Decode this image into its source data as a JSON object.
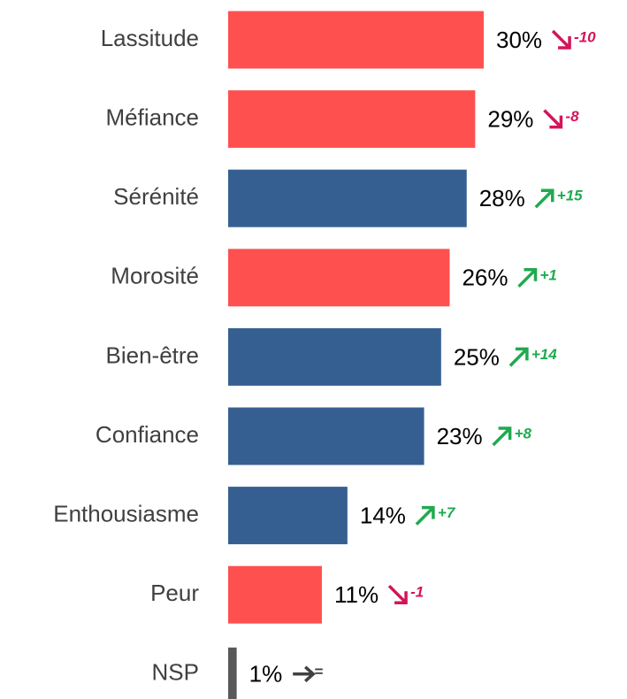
{
  "chart_data": {
    "type": "hbar",
    "categories": [
      "Lassitude",
      "Méfiance",
      "Sérénité",
      "Morosité",
      "Bien-être",
      "Confiance",
      "Enthousiasme",
      "Peur",
      "NSP"
    ],
    "values": [
      30,
      29,
      28,
      26,
      25,
      23,
      14,
      11,
      1
    ],
    "value_labels": [
      "30%",
      "29%",
      "28%",
      "26%",
      "25%",
      "23%",
      "14%",
      "11%",
      "1%"
    ],
    "colors": [
      "#ff5050",
      "#ff5050",
      "#365f91",
      "#ff5050",
      "#365f91",
      "#365f91",
      "#365f91",
      "#ff5050",
      "#595959"
    ],
    "changes": [
      "-10",
      "-8",
      "+15",
      "+1",
      "+14",
      "+8",
      "+7",
      "-1",
      "="
    ]
  }
}
